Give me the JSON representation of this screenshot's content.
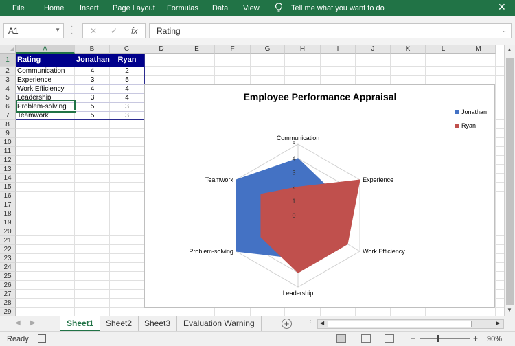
{
  "ribbon": {
    "tabs": [
      "File",
      "Home",
      "Insert",
      "Page Layout",
      "Formulas",
      "Data",
      "View"
    ],
    "tell_me": "Tell me what you want to do",
    "close_symbol": "✕",
    "color": "#217346"
  },
  "formula_bar": {
    "name_box": "A1",
    "cancel_symbol": "✕",
    "enter_symbol": "✓",
    "fx_symbol": "fx",
    "content": "Rating"
  },
  "columns": [
    "A",
    "B",
    "C",
    "D",
    "E",
    "F",
    "G",
    "H",
    "I",
    "J",
    "K",
    "L",
    "M"
  ],
  "rows": [
    "1",
    "2",
    "3",
    "4",
    "5",
    "6",
    "7",
    "8",
    "9",
    "10",
    "11",
    "12",
    "13",
    "14",
    "15",
    "16",
    "17",
    "18",
    "19",
    "20",
    "21",
    "22",
    "23",
    "24",
    "25",
    "26",
    "27",
    "28",
    "29"
  ],
  "table": {
    "header": [
      "Rating",
      "Jonathan",
      "Ryan"
    ],
    "header_bg": "#00008b",
    "rows": [
      [
        "Communication",
        "4",
        "2"
      ],
      [
        "Experience",
        "3",
        "5"
      ],
      [
        "Work Efficiency",
        "4",
        "4"
      ],
      [
        "Leadership",
        "3",
        "4"
      ],
      [
        "Problem-solving",
        "5",
        "3"
      ],
      [
        "Teamwork",
        "5",
        "3"
      ]
    ]
  },
  "chart_data": {
    "type": "radar",
    "title": "Employee Performance Appraisal",
    "categories": [
      "Communication",
      "Experience",
      "Work Efficiency",
      "Leadership",
      "Problem-solving",
      "Teamwork"
    ],
    "series": [
      {
        "name": "Jonathan",
        "values": [
          4,
          3,
          4,
          3,
          5,
          5
        ],
        "color": "#4472c4"
      },
      {
        "name": "Ryan",
        "values": [
          2,
          5,
          4,
          4,
          3,
          3
        ],
        "color": "#c0504d"
      }
    ],
    "ticks": [
      "0",
      "1",
      "2",
      "3",
      "4",
      "5"
    ],
    "range": [
      0,
      5
    ],
    "legend_position": "top-right"
  },
  "sheets": {
    "tabs": [
      "Sheet1",
      "Sheet2",
      "Sheet3",
      "Evaluation Warning"
    ],
    "active": "Sheet1",
    "add_symbol": "+"
  },
  "status": {
    "ready": "Ready",
    "zoom_out": "−",
    "zoom_in": "+",
    "zoom": "90%"
  }
}
